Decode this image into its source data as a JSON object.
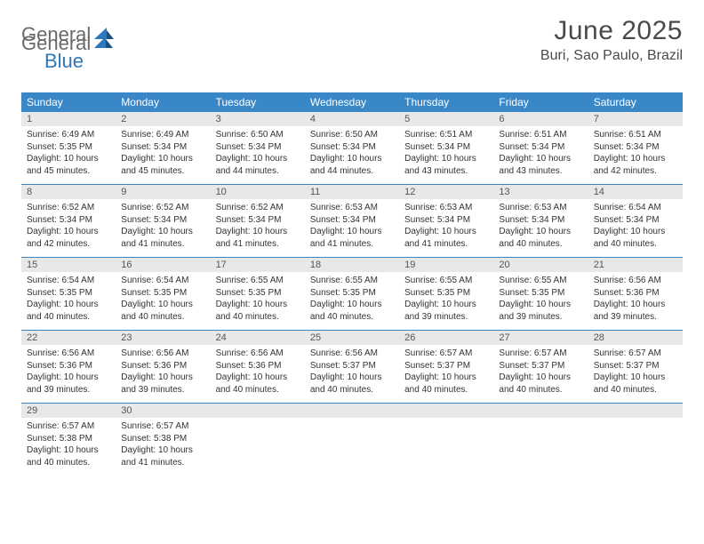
{
  "logo": {
    "text_general": "General",
    "text_blue": "Blue"
  },
  "header": {
    "month_title": "June 2025",
    "location": "Buri, Sao Paulo, Brazil"
  },
  "colors": {
    "header_blue": "#3a87c8",
    "daynum_bg": "#e8e8e8",
    "rule_blue": "#3a87c8",
    "text": "#333333",
    "title_text": "#4a4a4a"
  },
  "weekdays": [
    "Sunday",
    "Monday",
    "Tuesday",
    "Wednesday",
    "Thursday",
    "Friday",
    "Saturday"
  ],
  "weeks": [
    [
      {
        "n": "1",
        "sr": "6:49 AM",
        "ss": "5:35 PM",
        "dlh": "10",
        "dlm": "45"
      },
      {
        "n": "2",
        "sr": "6:49 AM",
        "ss": "5:34 PM",
        "dlh": "10",
        "dlm": "45"
      },
      {
        "n": "3",
        "sr": "6:50 AM",
        "ss": "5:34 PM",
        "dlh": "10",
        "dlm": "44"
      },
      {
        "n": "4",
        "sr": "6:50 AM",
        "ss": "5:34 PM",
        "dlh": "10",
        "dlm": "44"
      },
      {
        "n": "5",
        "sr": "6:51 AM",
        "ss": "5:34 PM",
        "dlh": "10",
        "dlm": "43"
      },
      {
        "n": "6",
        "sr": "6:51 AM",
        "ss": "5:34 PM",
        "dlh": "10",
        "dlm": "43"
      },
      {
        "n": "7",
        "sr": "6:51 AM",
        "ss": "5:34 PM",
        "dlh": "10",
        "dlm": "42"
      }
    ],
    [
      {
        "n": "8",
        "sr": "6:52 AM",
        "ss": "5:34 PM",
        "dlh": "10",
        "dlm": "42"
      },
      {
        "n": "9",
        "sr": "6:52 AM",
        "ss": "5:34 PM",
        "dlh": "10",
        "dlm": "41"
      },
      {
        "n": "10",
        "sr": "6:52 AM",
        "ss": "5:34 PM",
        "dlh": "10",
        "dlm": "41"
      },
      {
        "n": "11",
        "sr": "6:53 AM",
        "ss": "5:34 PM",
        "dlh": "10",
        "dlm": "41"
      },
      {
        "n": "12",
        "sr": "6:53 AM",
        "ss": "5:34 PM",
        "dlh": "10",
        "dlm": "41"
      },
      {
        "n": "13",
        "sr": "6:53 AM",
        "ss": "5:34 PM",
        "dlh": "10",
        "dlm": "40"
      },
      {
        "n": "14",
        "sr": "6:54 AM",
        "ss": "5:34 PM",
        "dlh": "10",
        "dlm": "40"
      }
    ],
    [
      {
        "n": "15",
        "sr": "6:54 AM",
        "ss": "5:35 PM",
        "dlh": "10",
        "dlm": "40"
      },
      {
        "n": "16",
        "sr": "6:54 AM",
        "ss": "5:35 PM",
        "dlh": "10",
        "dlm": "40"
      },
      {
        "n": "17",
        "sr": "6:55 AM",
        "ss": "5:35 PM",
        "dlh": "10",
        "dlm": "40"
      },
      {
        "n": "18",
        "sr": "6:55 AM",
        "ss": "5:35 PM",
        "dlh": "10",
        "dlm": "40"
      },
      {
        "n": "19",
        "sr": "6:55 AM",
        "ss": "5:35 PM",
        "dlh": "10",
        "dlm": "39"
      },
      {
        "n": "20",
        "sr": "6:55 AM",
        "ss": "5:35 PM",
        "dlh": "10",
        "dlm": "39"
      },
      {
        "n": "21",
        "sr": "6:56 AM",
        "ss": "5:36 PM",
        "dlh": "10",
        "dlm": "39"
      }
    ],
    [
      {
        "n": "22",
        "sr": "6:56 AM",
        "ss": "5:36 PM",
        "dlh": "10",
        "dlm": "39"
      },
      {
        "n": "23",
        "sr": "6:56 AM",
        "ss": "5:36 PM",
        "dlh": "10",
        "dlm": "39"
      },
      {
        "n": "24",
        "sr": "6:56 AM",
        "ss": "5:36 PM",
        "dlh": "10",
        "dlm": "40"
      },
      {
        "n": "25",
        "sr": "6:56 AM",
        "ss": "5:37 PM",
        "dlh": "10",
        "dlm": "40"
      },
      {
        "n": "26",
        "sr": "6:57 AM",
        "ss": "5:37 PM",
        "dlh": "10",
        "dlm": "40"
      },
      {
        "n": "27",
        "sr": "6:57 AM",
        "ss": "5:37 PM",
        "dlh": "10",
        "dlm": "40"
      },
      {
        "n": "28",
        "sr": "6:57 AM",
        "ss": "5:37 PM",
        "dlh": "10",
        "dlm": "40"
      }
    ],
    [
      {
        "n": "29",
        "sr": "6:57 AM",
        "ss": "5:38 PM",
        "dlh": "10",
        "dlm": "40"
      },
      {
        "n": "30",
        "sr": "6:57 AM",
        "ss": "5:38 PM",
        "dlh": "10",
        "dlm": "41"
      },
      null,
      null,
      null,
      null,
      null
    ]
  ],
  "labels": {
    "sunrise_prefix": "Sunrise: ",
    "sunset_prefix": "Sunset: ",
    "daylight_prefix": "Daylight: ",
    "hours_word": " hours",
    "and_word": "and ",
    "minutes_word": " minutes."
  }
}
